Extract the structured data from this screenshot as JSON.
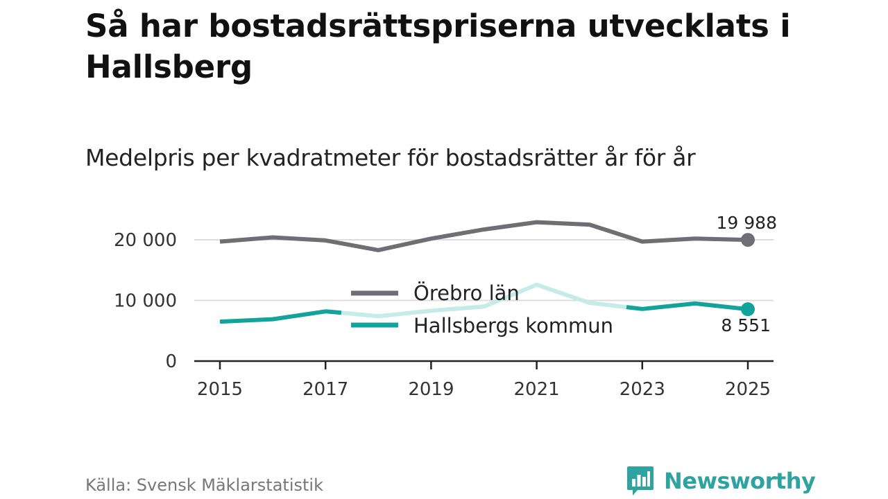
{
  "title": "Så har bostadsrättspriserna utvecklats i Hallsberg",
  "subtitle": "Medelpris per kvadratmeter för bostadsrätter år för år",
  "source": "Källa: Svensk Mäklarstatistik",
  "brand": {
    "name": "Newsworthy",
    "icon": "newsworthy-logo-icon",
    "color": "#2ea3a0"
  },
  "colors": {
    "lan": "#6f6e75",
    "kommun": "#11a39c",
    "kommun_faded": "#c7ebe8",
    "grid": "#dddddd",
    "axis": "#222222",
    "tick_text": "#333333"
  },
  "chart_data": {
    "type": "line",
    "x": [
      2015,
      2016,
      2017,
      2018,
      2019,
      2020,
      2021,
      2022,
      2023,
      2024,
      2025
    ],
    "x_ticks": [
      2015,
      2017,
      2019,
      2021,
      2023,
      2025
    ],
    "x_tick_labels": [
      "2015",
      "2017",
      "2019",
      "2021",
      "2023",
      "2025"
    ],
    "y_ticks": [
      0,
      10000,
      20000
    ],
    "y_tick_labels": [
      "0",
      "10 000",
      "20 000"
    ],
    "ylim": [
      0,
      23000
    ],
    "xlim": [
      2015,
      2025
    ],
    "grid": true,
    "legend": "center",
    "series": [
      {
        "key": "lan",
        "name": "Örebro län",
        "values": [
          19700,
          20400,
          19900,
          18300,
          20200,
          21700,
          22900,
          22500,
          19700,
          20200,
          19988
        ],
        "end_label": "19 988"
      },
      {
        "key": "kommun",
        "name": "Hallsbergs kommun",
        "values": [
          6500,
          6900,
          8200,
          7400,
          8300,
          9000,
          12600,
          9600,
          8600,
          9500,
          8551
        ],
        "faded_range": [
          2017.3,
          2022.7
        ],
        "end_label": "8 551"
      }
    ]
  }
}
